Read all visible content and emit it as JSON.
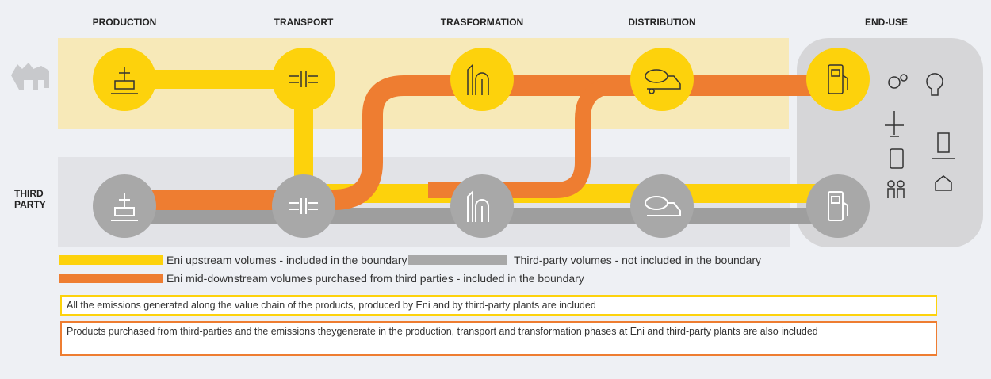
{
  "stages": [
    "PRODUCTION",
    "TRANSPORT",
    "TRASFORMATION",
    "DISTRIBUTION",
    "END-USE"
  ],
  "row_label": [
    "THIRD",
    "PARTY"
  ],
  "legend": [
    "Eni upstream volumes - included in the boundary",
    "Third-party volumes - not included in the boundary",
    "Eni mid-downstream volumes purchased from third parties - included in the boundary"
  ],
  "notes": [
    "All the emissions generated along the value chain of the products, produced by Eni and by third-party plants are included",
    "Products purchased from third-parties and the emissions theygenerate in the production, transport and transformation phases at Eni and third-party plants are also included"
  ]
}
